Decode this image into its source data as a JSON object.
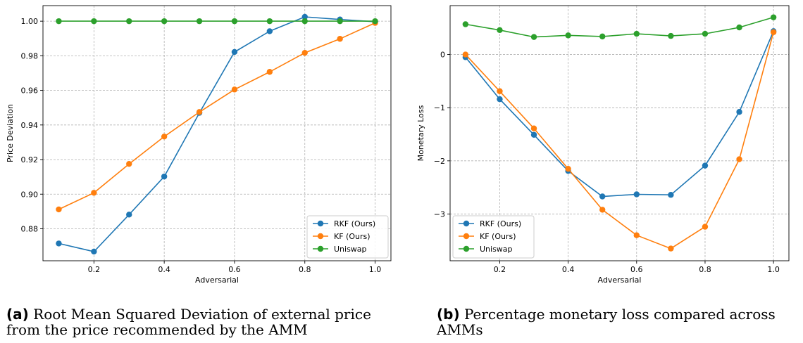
{
  "colors": {
    "rkf": "#1f77b4",
    "kf": "#ff7f0e",
    "uniswap": "#2ca02c",
    "grid": "#b0b0b0"
  },
  "chart_data": [
    {
      "type": "line",
      "xlabel": "Adversarial",
      "ylabel": "Price Deviation",
      "xlim": [
        0.055,
        1.045
      ],
      "ylim": [
        0.8615,
        1.009
      ],
      "xticks": [
        0.2,
        0.4,
        0.6,
        0.8,
        1.0
      ],
      "xtick_labels": [
        "0.2",
        "0.4",
        "0.6",
        "0.8",
        "1.0"
      ],
      "yticks": [
        0.88,
        0.9,
        0.92,
        0.94,
        0.96,
        0.98,
        1.0
      ],
      "ytick_labels": [
        "0.88",
        "0.90",
        "0.92",
        "0.94",
        "0.96",
        "0.98",
        "1.00"
      ],
      "grid": true,
      "grid_style": "dashed",
      "legend_position": "bottom-right",
      "x": [
        0.1,
        0.2,
        0.3,
        0.4,
        0.5,
        0.6,
        0.7,
        0.8,
        0.9,
        1.0
      ],
      "series": [
        {
          "name": "RKF (Ours)",
          "key": "rkf",
          "values": [
            0.8715,
            0.8668,
            0.8882,
            0.9102,
            0.947,
            0.9822,
            0.9942,
            1.0025,
            1.001,
            0.9997
          ]
        },
        {
          "name": "KF (Ours)",
          "key": "kf",
          "values": [
            0.8912,
            0.9008,
            0.9175,
            0.9333,
            0.9475,
            0.9605,
            0.9707,
            0.9817,
            0.9898,
            0.999
          ]
        },
        {
          "name": "Uniswap",
          "key": "uniswap",
          "values": [
            1.0,
            1.0,
            1.0,
            1.0,
            1.0,
            1.0,
            1.0,
            1.0,
            1.0,
            1.0
          ]
        }
      ]
    },
    {
      "type": "line",
      "xlabel": "Adversarial",
      "ylabel": "Monetary Loss",
      "xlim": [
        0.055,
        1.045
      ],
      "ylim": [
        -3.88,
        0.92
      ],
      "xticks": [
        0.2,
        0.4,
        0.6,
        0.8,
        1.0
      ],
      "xtick_labels": [
        "0.2",
        "0.4",
        "0.6",
        "0.8",
        "1.0"
      ],
      "yticks": [
        -3,
        -2,
        -1,
        0
      ],
      "ytick_labels": [
        "−3",
        "−2",
        "−1",
        "0"
      ],
      "grid": true,
      "grid_style": "dashed",
      "legend_position": "bottom-left",
      "x": [
        0.1,
        0.2,
        0.3,
        0.4,
        0.5,
        0.6,
        0.7,
        0.8,
        0.9,
        1.0
      ],
      "series": [
        {
          "name": "RKF (Ours)",
          "key": "rkf",
          "values": [
            -0.05,
            -0.84,
            -1.51,
            -2.19,
            -2.67,
            -2.63,
            -2.64,
            -2.09,
            -1.08,
            0.44
          ]
        },
        {
          "name": "KF (Ours)",
          "key": "kf",
          "values": [
            0.0,
            -0.69,
            -1.39,
            -2.15,
            -2.92,
            -3.4,
            -3.65,
            -3.24,
            -1.97,
            0.42
          ]
        },
        {
          "name": "Uniswap",
          "key": "uniswap",
          "values": [
            0.57,
            0.46,
            0.33,
            0.36,
            0.34,
            0.39,
            0.35,
            0.39,
            0.51,
            0.7
          ]
        }
      ]
    }
  ],
  "captions": {
    "a": {
      "label": "(a)",
      "text": "Root Mean Squared Deviation of external price from the price recommended by the AMM"
    },
    "b": {
      "label": "(b)",
      "text": "Percentage monetary loss compared across AMMs"
    }
  }
}
